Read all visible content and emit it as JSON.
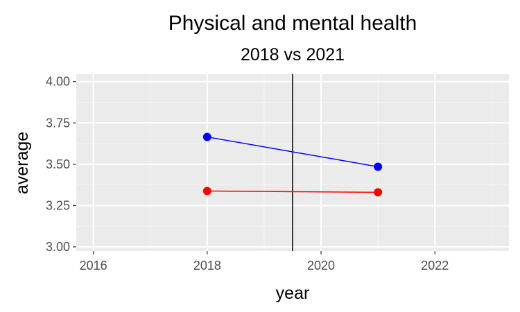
{
  "chart_data": {
    "type": "line",
    "title": "Physical and mental health",
    "subtitle": "2018 vs 2021",
    "xlabel": "year",
    "ylabel": "average",
    "xlim": [
      2015.7,
      2023.3
    ],
    "ylim": [
      2.975,
      4.045
    ],
    "x_ticks": [
      2016,
      2018,
      2020,
      2022
    ],
    "x_tick_labels": [
      "2016",
      "2018",
      "2020",
      "2022"
    ],
    "y_ticks": [
      3.0,
      3.25,
      3.5,
      3.75,
      4.0
    ],
    "y_tick_labels": [
      "3.00",
      "3.25",
      "3.50",
      "3.75",
      "4.00"
    ],
    "grid": true,
    "vline_x": 2019.5,
    "series": [
      {
        "color": "#0000ff",
        "x": [
          2018,
          2021
        ],
        "values": [
          3.665,
          3.485
        ]
      },
      {
        "color": "#ff0000",
        "x": [
          2018,
          2021
        ],
        "values": [
          3.338,
          3.33
        ]
      }
    ],
    "colors": {
      "panel_bg": "#ebebeb",
      "grid_major": "#ffffff",
      "grid_minor": "#f5f5f5",
      "vline": "#000000",
      "tick": "#333333"
    }
  }
}
